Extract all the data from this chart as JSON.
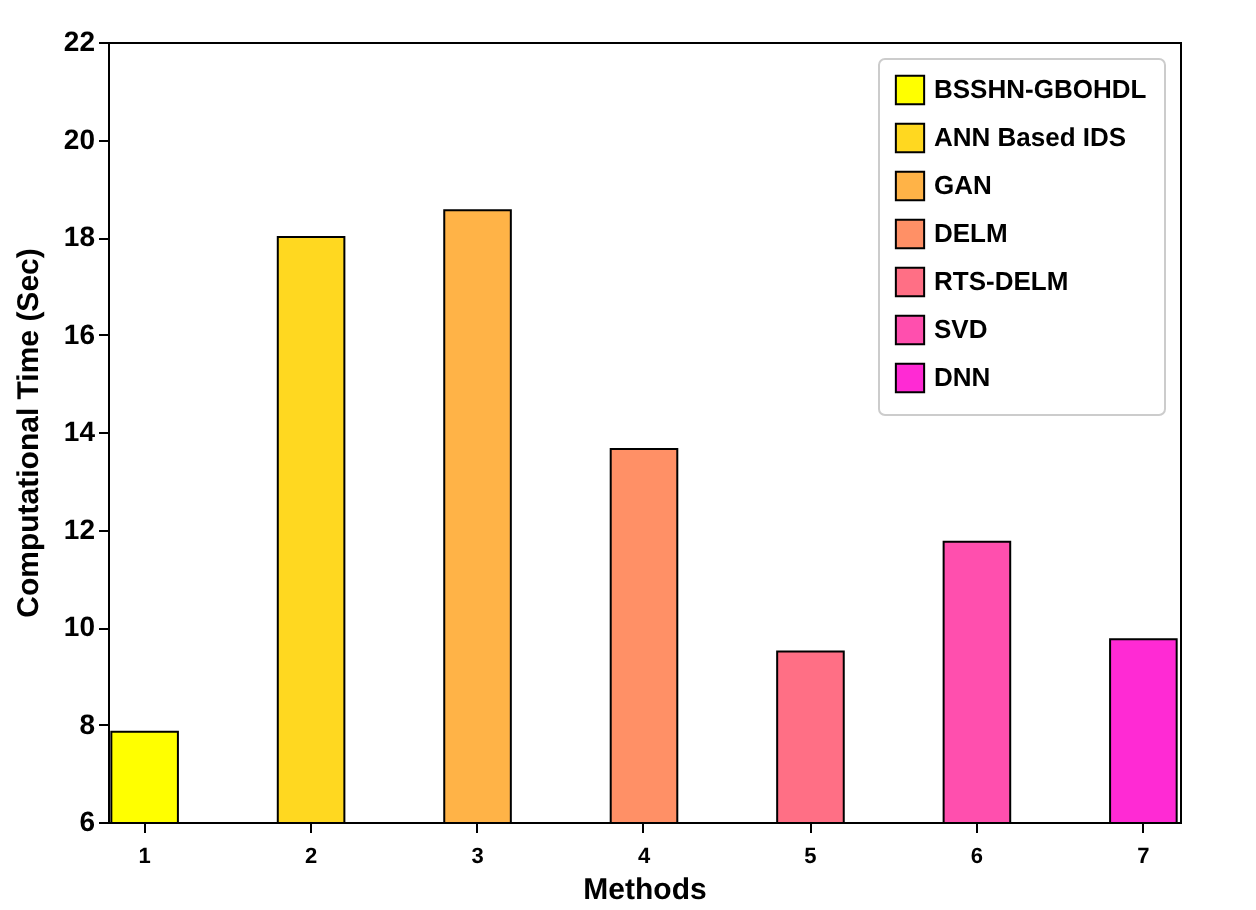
{
  "chart_data": {
    "type": "bar",
    "xlabel": "Methods",
    "ylabel": "Computational Time (Sec)",
    "categories": [
      "1",
      "2",
      "3",
      "4",
      "5",
      "6",
      "7"
    ],
    "series": [
      {
        "name": "BSSHN-GBOHDL",
        "color": "#ffff00",
        "values": [
          7.85,
          null,
          null,
          null,
          null,
          null,
          null
        ]
      },
      {
        "name": "ANN Based IDS",
        "color": "#ffd820",
        "values": [
          null,
          18.0,
          null,
          null,
          null,
          null,
          null
        ]
      },
      {
        "name": "GAN",
        "color": "#ffb347",
        "values": [
          null,
          null,
          18.55,
          null,
          null,
          null,
          null
        ]
      },
      {
        "name": "DELM",
        "color": "#ff9066",
        "values": [
          null,
          null,
          null,
          13.65,
          null,
          null,
          null
        ]
      },
      {
        "name": "RTS-DELM",
        "color": "#ff6f85",
        "values": [
          null,
          null,
          null,
          null,
          9.5,
          null,
          null
        ]
      },
      {
        "name": "SVD",
        "color": "#ff4fae",
        "values": [
          null,
          null,
          null,
          null,
          null,
          11.75,
          null
        ]
      },
      {
        "name": "DNN",
        "color": "#ff2ad4",
        "values": [
          null,
          null,
          null,
          null,
          null,
          null,
          9.75
        ]
      }
    ],
    "ylim": [
      6,
      22
    ],
    "yticks": [
      6,
      8,
      10,
      12,
      14,
      16,
      18,
      20,
      22
    ],
    "grid": false,
    "legend": "top right"
  }
}
